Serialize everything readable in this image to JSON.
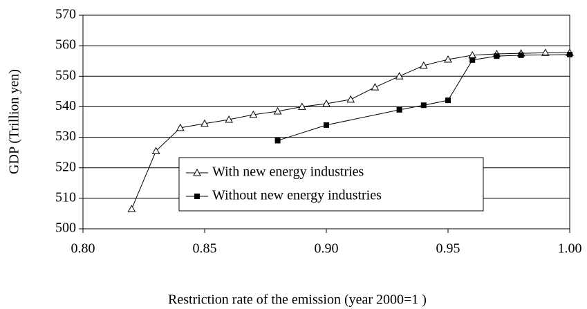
{
  "chart_data": {
    "type": "line",
    "xlabel": "Restriction rate of the emission  (year 2000=1 )",
    "ylabel": "GDP (Trillion yen)",
    "xlim": [
      0.8,
      1.0
    ],
    "xticks": [
      {
        "value": 0.8,
        "label": "0.80"
      },
      0.85,
      {
        "value": 0.9,
        "label": "0.90"
      },
      0.95,
      {
        "value": 1.0,
        "label": "1.00"
      }
    ],
    "ylim": [
      500,
      570
    ],
    "yticks": [
      500,
      510,
      520,
      530,
      540,
      550,
      560,
      570
    ],
    "grid": true,
    "legend": "lower center",
    "series": [
      {
        "name": "With new energy industries",
        "color": "#000000",
        "marker": "open-triangle",
        "x": [
          0.82,
          0.83,
          0.84,
          0.85,
          0.86,
          0.87,
          0.88,
          0.89,
          0.9,
          0.91,
          0.92,
          0.93,
          0.94,
          0.95,
          0.96,
          0.97,
          0.98,
          0.99,
          1.0
        ],
        "values": [
          506.5,
          525.5,
          533.1,
          534.5,
          535.8,
          537.4,
          538.5,
          540,
          541,
          542.4,
          546.4,
          550,
          553.5,
          555.5,
          556.9,
          557.3,
          557.5,
          557.7,
          557.7
        ]
      },
      {
        "name": "Without new energy industries",
        "color": "#000000",
        "marker": "filled-square",
        "x": [
          0.88,
          0.9,
          0.93,
          0.94,
          0.95,
          0.96,
          0.97,
          0.98,
          1.0
        ],
        "values": [
          528.9,
          534.0,
          539.0,
          540.5,
          542.1,
          555.3,
          556.6,
          556.9,
          557.1
        ]
      }
    ]
  }
}
